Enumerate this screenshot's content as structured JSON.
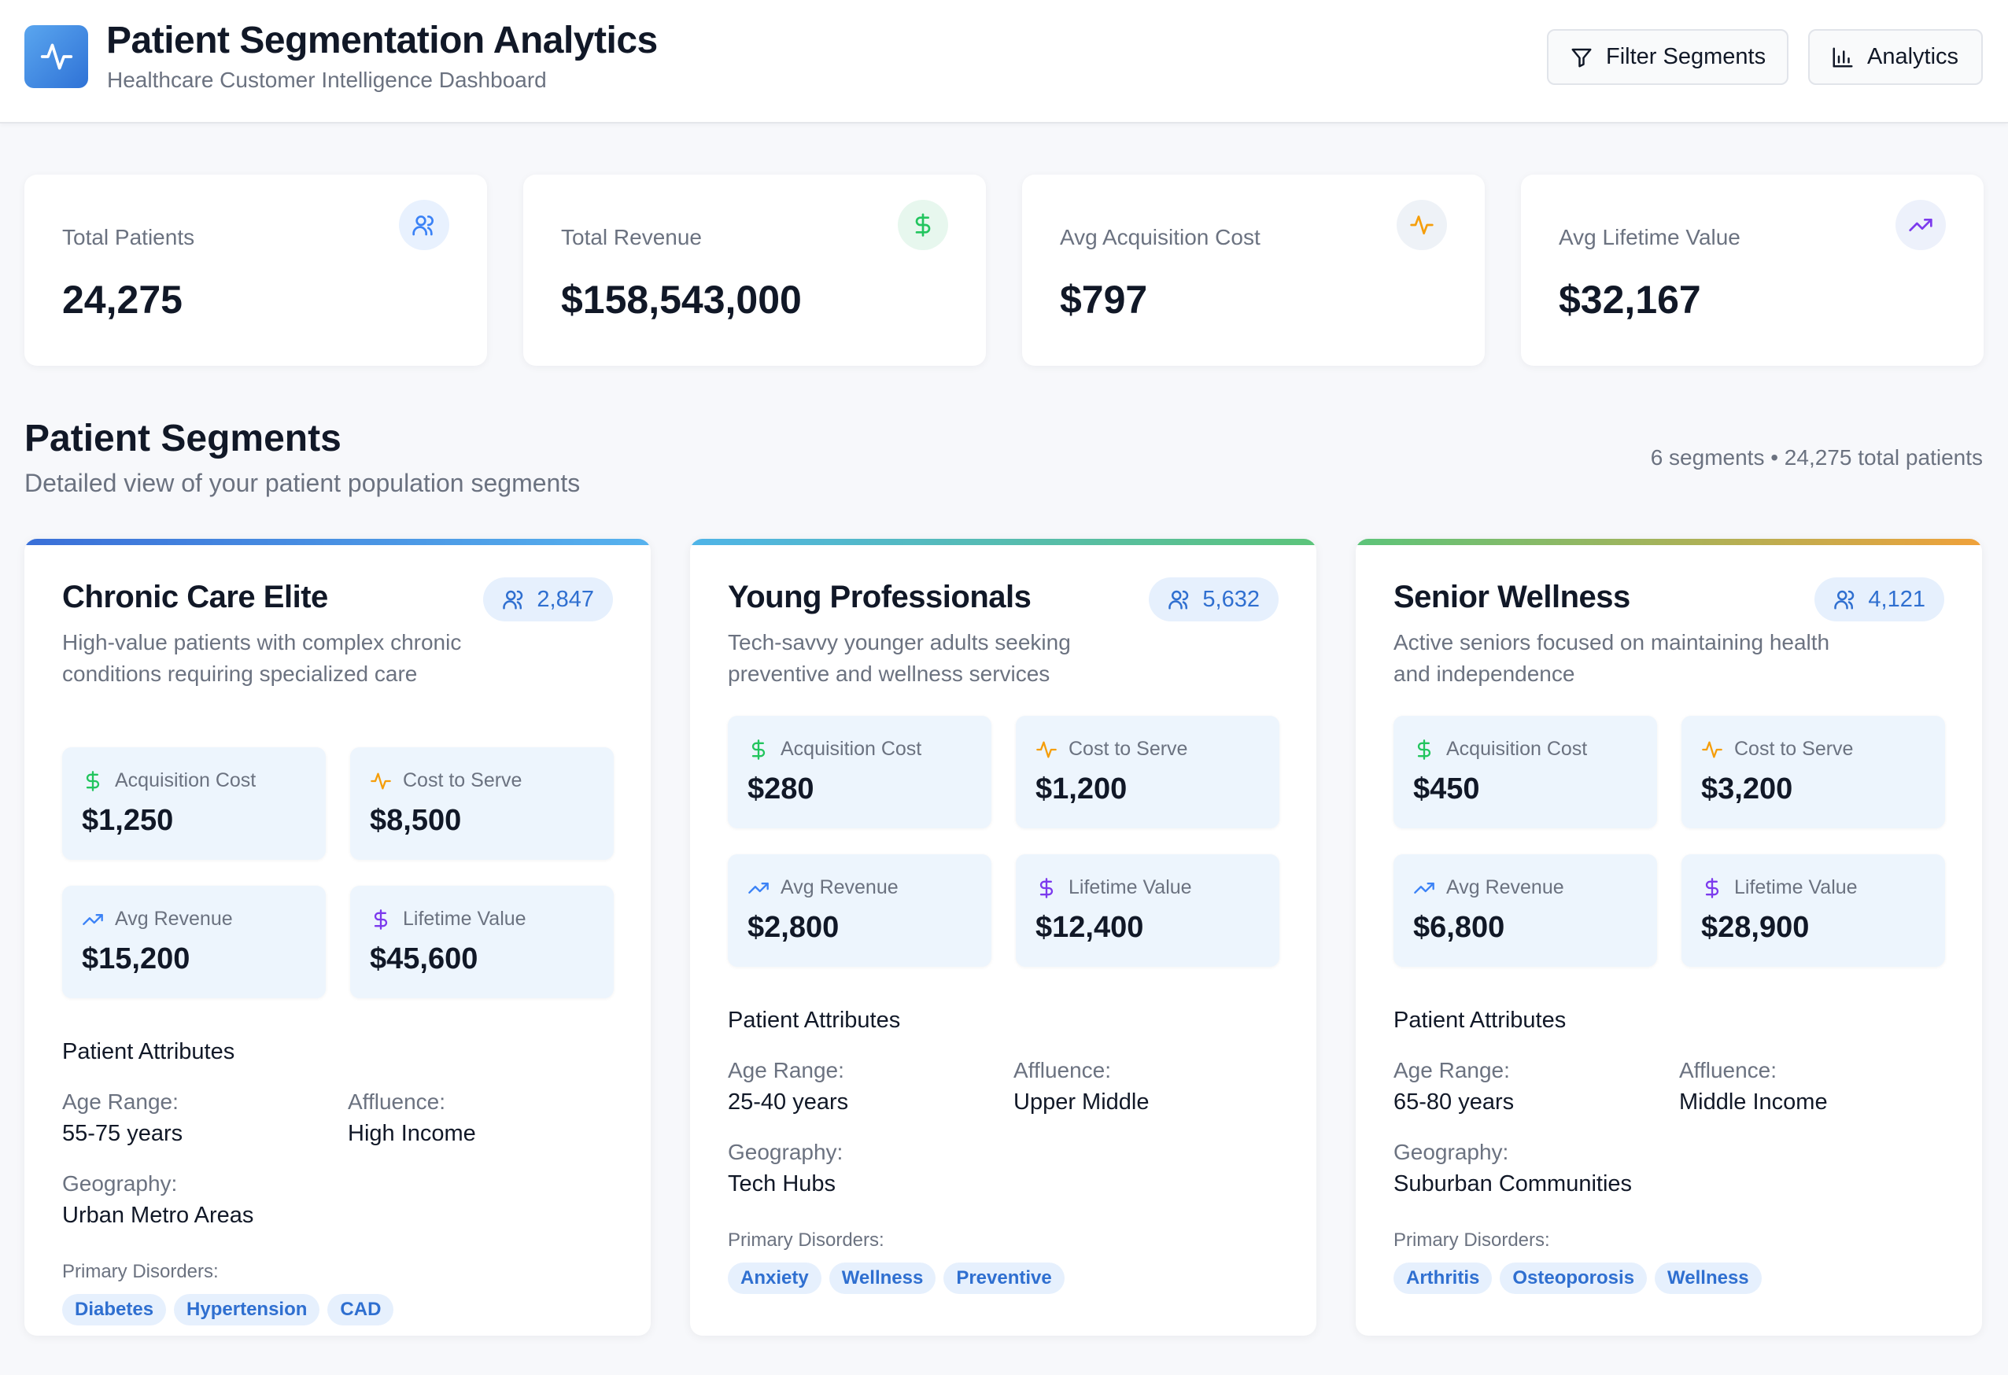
{
  "header": {
    "title": "Patient Segmentation Analytics",
    "subtitle": "Healthcare Customer Intelligence Dashboard",
    "logo_icon": "activity-icon",
    "buttons": [
      {
        "label": "Filter Segments",
        "icon": "filter-icon"
      },
      {
        "label": "Analytics",
        "icon": "bar-chart-icon"
      }
    ]
  },
  "stats": [
    {
      "label": "Total Patients",
      "value": "24,275",
      "icon": "users-icon",
      "color": "#3b82f6"
    },
    {
      "label": "Total Revenue",
      "value": "$158,543,000",
      "icon": "dollar-icon",
      "color": "#22c55e"
    },
    {
      "label": "Avg Acquisition Cost",
      "value": "$797",
      "icon": "activity-icon",
      "color": "#f59e0b"
    },
    {
      "label": "Avg Lifetime Value",
      "value": "$32,167",
      "icon": "trending-up-icon",
      "color": "#7c3aed"
    }
  ],
  "segments_section": {
    "title": "Patient Segments",
    "subtitle": "Detailed view of your patient population segments",
    "meta": "6 segments • 24,275 total patients"
  },
  "segments": [
    {
      "name": "Chronic Care Elite",
      "count": "2,847",
      "description": "High-value patients with complex chronic conditions requiring specialized care",
      "accent": [
        "#3a6fd8",
        "#57b3ee"
      ],
      "metrics": [
        {
          "label": "Acquisition Cost",
          "value": "$1,250",
          "icon": "dollar-icon"
        },
        {
          "label": "Cost to Serve",
          "value": "$8,500",
          "icon": "activity-icon"
        },
        {
          "label": "Avg Revenue",
          "value": "$15,200",
          "icon": "trending-up-icon"
        },
        {
          "label": "Lifetime Value",
          "value": "$45,600",
          "icon": "dollar-icon"
        }
      ],
      "attributes_title": "Patient Attributes",
      "age_label": "Age Range:",
      "age": "55-75 years",
      "affluence_label": "Affluence:",
      "affluence": "High Income",
      "geo_label": "Geography:",
      "geography": "Urban Metro Areas",
      "disorders_label": "Primary Disorders:",
      "disorders": [
        "Diabetes",
        "Hypertension",
        "CAD"
      ]
    },
    {
      "name": "Young Professionals",
      "count": "5,632",
      "description": "Tech-savvy younger adults seeking preventive and wellness services",
      "accent": [
        "#4fb4e8",
        "#5cc47a"
      ],
      "metrics": [
        {
          "label": "Acquisition Cost",
          "value": "$280",
          "icon": "dollar-icon"
        },
        {
          "label": "Cost to Serve",
          "value": "$1,200",
          "icon": "activity-icon"
        },
        {
          "label": "Avg Revenue",
          "value": "$2,800",
          "icon": "trending-up-icon"
        },
        {
          "label": "Lifetime Value",
          "value": "$12,400",
          "icon": "dollar-icon"
        }
      ],
      "attributes_title": "Patient Attributes",
      "age_label": "Age Range:",
      "age": "25-40 years",
      "affluence_label": "Affluence:",
      "affluence": "Upper Middle",
      "geo_label": "Geography:",
      "geography": "Tech Hubs",
      "disorders_label": "Primary Disorders:",
      "disorders": [
        "Anxiety",
        "Wellness",
        "Preventive"
      ]
    },
    {
      "name": "Senior Wellness",
      "count": "4,121",
      "description": "Active seniors focused on maintaining health and independence",
      "accent": [
        "#5cc47a",
        "#f0a13a"
      ],
      "metrics": [
        {
          "label": "Acquisition Cost",
          "value": "$450",
          "icon": "dollar-icon"
        },
        {
          "label": "Cost to Serve",
          "value": "$3,200",
          "icon": "activity-icon"
        },
        {
          "label": "Avg Revenue",
          "value": "$6,800",
          "icon": "trending-up-icon"
        },
        {
          "label": "Lifetime Value",
          "value": "$28,900",
          "icon": "dollar-icon"
        }
      ],
      "attributes_title": "Patient Attributes",
      "age_label": "Age Range:",
      "age": "65-80 years",
      "affluence_label": "Affluence:",
      "affluence": "Middle Income",
      "geo_label": "Geography:",
      "geography": "Suburban Communities",
      "disorders_label": "Primary Disorders:",
      "disorders": [
        "Arthritis",
        "Osteoporosis",
        "Wellness"
      ]
    }
  ]
}
